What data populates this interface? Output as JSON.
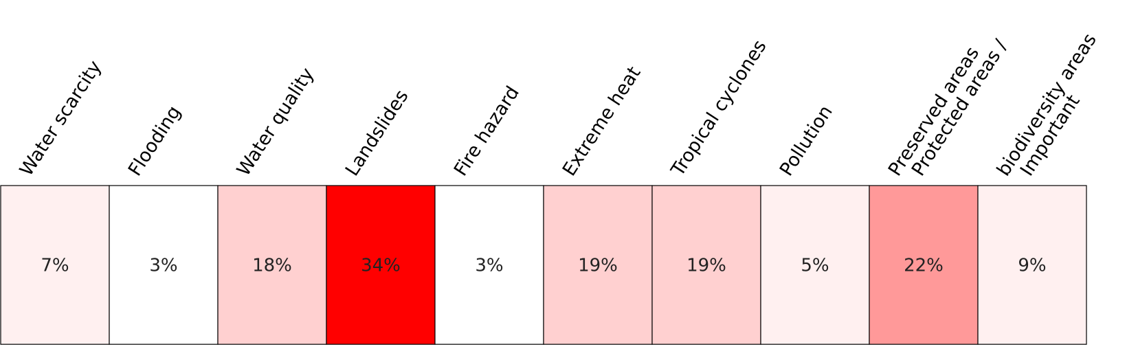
{
  "chart_data": {
    "type": "heatmap",
    "title": "",
    "categories": [
      [
        "Water scarcity"
      ],
      [
        "Flooding"
      ],
      [
        "Water quality"
      ],
      [
        "Landslides"
      ],
      [
        "Fire hazard"
      ],
      [
        "Extreme heat"
      ],
      [
        "Tropical cyclones"
      ],
      [
        "Pollution"
      ],
      [
        "Protected areas /",
        "Preserved areas"
      ],
      [
        "Important",
        "biodiversity areas"
      ]
    ],
    "values": [
      7,
      3,
      18,
      34,
      3,
      19,
      19,
      5,
      22,
      9
    ],
    "value_labels": [
      "7%",
      "3%",
      "18%",
      "34%",
      "3%",
      "19%",
      "19%",
      "5%",
      "22%",
      "9%"
    ],
    "unit": "%",
    "colors": {
      "scale": [
        "#ffffff",
        "#fff0f0",
        "#ffd0d0",
        "#ff9999",
        "#ff0000"
      ],
      "cell_fills": [
        "#fff0f0",
        "#ffffff",
        "#ffd0d0",
        "#ff0000",
        "#ffffff",
        "#ffd0d0",
        "#ffd0d0",
        "#fff0f0",
        "#ff9999",
        "#fff0f0"
      ],
      "border": "#000000"
    }
  }
}
